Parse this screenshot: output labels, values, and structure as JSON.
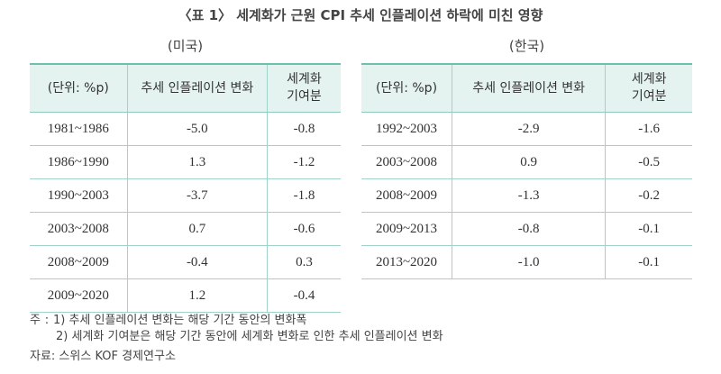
{
  "title": "〈표 1〉 세계화가 근원 CPI 추세 인플레이션 하락에 미친 영향",
  "tables": [
    {
      "caption": "(미국)",
      "header": [
        "(단위: %p)",
        "추세 인플레이션 변화",
        [
          "세계화",
          "기여분"
        ]
      ],
      "rows": [
        [
          "1981~1986",
          "-5.0",
          "-0.8"
        ],
        [
          "1986~1990",
          "1.3",
          "-1.2"
        ],
        [
          "1990~2003",
          "-3.7",
          "-1.8"
        ],
        [
          "2003~2008",
          "0.7",
          "-0.6"
        ],
        [
          "2008~2009",
          "-0.4",
          "0.3"
        ],
        [
          "2009~2020",
          "1.2",
          "-0.4"
        ]
      ]
    },
    {
      "caption": "(한국)",
      "header": [
        "(단위: %p)",
        "추세 인플레이션 변화",
        [
          "세계화",
          "기여분"
        ]
      ],
      "rows": [
        [
          "1992~2003",
          "-2.9",
          "-1.6"
        ],
        [
          "2003~2008",
          "0.9",
          "-0.5"
        ],
        [
          "2008~2009",
          "-1.3",
          "-0.2"
        ],
        [
          "2009~2013",
          "-0.8",
          "-0.1"
        ],
        [
          "2013~2020",
          "-1.0",
          "-0.1"
        ]
      ]
    }
  ],
  "notes": {
    "label": "주",
    "items": [
      "1) 추세 인플레이션 변화는 해당 기간 동안의 변화폭",
      "2) 세계화 기여분은 해당 기간 동안에 세계화 변화로 인한 추세 인플레이션 변화"
    ]
  },
  "source": "자료: 스위스 KOF 경제연구소"
}
